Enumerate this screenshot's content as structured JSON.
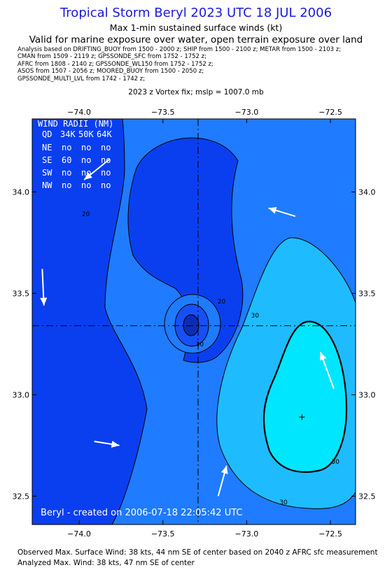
{
  "header": {
    "title": "Tropical Storm Beryl 2023 UTC 18 JUL 2006",
    "subtitle1": "Max 1-min sustained surface winds (kt)",
    "subtitle2": "Valid for marine exposure over water, open terrain exposure over land",
    "analysis_lines": [
      "Analysis based on  DRIFTING_BUOY from 1500 - 2000 z;  SHIP from 1500 - 2100 z;  METAR from 1500 - 2103 z;",
      "CMAN from 1509 - 2119 z;  GPSSONDE_SFC from 1752 - 1752 z;",
      "AFRC from 1808 - 2140 z;  GPSSONDE_WL150 from 1752 - 1752 z;",
      "ASOS from 1507 - 2056 z;  MOORED_BUOY from 1500 - 2050 z;",
      "GPSSONDE_MULTI_LVL from 1742 - 1742 z;"
    ],
    "vortex_fix": "2023 z Vortex fix; mslp = 1007.0 mb"
  },
  "wind_radii": {
    "title": "WIND RADII (NM)",
    "header": [
      "QD",
      "34K",
      "50K",
      "64K"
    ],
    "rows": [
      [
        "NE",
        "no",
        "no",
        "no"
      ],
      [
        "SE",
        "60",
        "no",
        "no"
      ],
      [
        "SW",
        "no",
        "no",
        "no"
      ],
      [
        "NW",
        "no",
        "no",
        "no"
      ]
    ]
  },
  "credit": "Beryl - created on 2006-07-18 22:05:42 UTC",
  "footer": {
    "line1": "Observed Max. Surface Wind: 38 kts, 44 nm SE of center based on 2040 z AFRC sfc measurement",
    "line2": "Analyzed Max. Wind: 38 kts, 47 nm SE of center"
  },
  "colors": {
    "level_lt20": "#0a3ff0",
    "level_20_30": "#1f7bff",
    "level_30_35": "#1ebcff",
    "level_gt35": "#00e6ff",
    "title": "#1a1adf"
  },
  "chart_data": {
    "type": "contour",
    "xlim": [
      -74.28,
      -72.35
    ],
    "ylim": [
      32.36,
      34.36
    ],
    "x_ticks": [
      -74.0,
      -73.5,
      -73.0,
      -72.5
    ],
    "x_tick_labels": [
      "−74.0",
      "−73.5",
      "−73.0",
      "−72.5"
    ],
    "y_ticks": [
      32.5,
      33.0,
      33.5,
      34.0
    ],
    "y_tick_labels": [
      "32.5",
      "33.0",
      "33.5",
      "34.0"
    ],
    "center": {
      "lon": -73.29,
      "lat": 33.34
    },
    "max_wind_marker": {
      "lon": -72.67,
      "lat": 32.89
    },
    "contour_levels": [
      20,
      30,
      35
    ],
    "contour_labels": [
      {
        "text": "20",
        "lon": -73.96,
        "lat": 33.88
      },
      {
        "text": "20",
        "lon": -73.15,
        "lat": 33.45
      },
      {
        "text": "30",
        "lon": -73.28,
        "lat": 33.24
      },
      {
        "text": "30",
        "lon": -72.95,
        "lat": 33.38
      },
      {
        "text": "30",
        "lon": -72.47,
        "lat": 32.66
      },
      {
        "text": "30",
        "lon": -72.78,
        "lat": 32.46
      }
    ],
    "wind_arrows": [
      {
        "lon0": -73.82,
        "lat0": 34.16,
        "lon1": -73.97,
        "lat1": 34.06
      },
      {
        "lon0": -72.71,
        "lat0": 33.88,
        "lon1": -72.87,
        "lat1": 33.92
      },
      {
        "lon0": -74.22,
        "lat0": 33.62,
        "lon1": -74.21,
        "lat1": 33.44
      },
      {
        "lon0": -72.48,
        "lat0": 33.03,
        "lon1": -72.56,
        "lat1": 33.21
      },
      {
        "lon0": -73.91,
        "lat0": 32.77,
        "lon1": -73.76,
        "lat1": 32.75
      },
      {
        "lon0": -73.17,
        "lat0": 32.5,
        "lon1": -73.12,
        "lat1": 32.65
      }
    ]
  }
}
